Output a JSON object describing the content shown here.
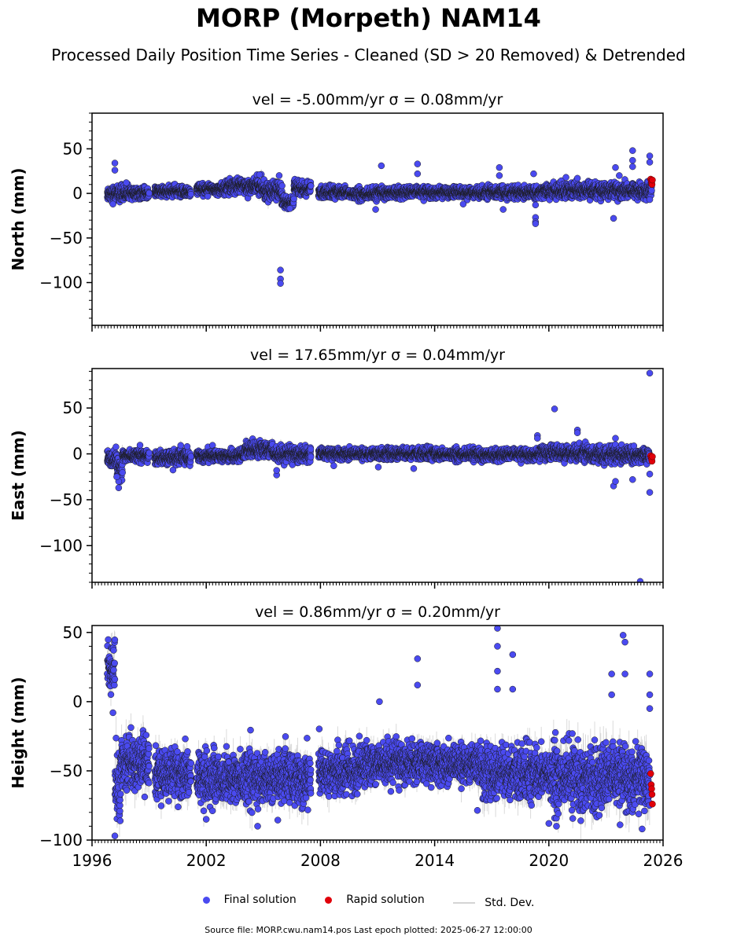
{
  "title": "MORP (Morpeth) NAM14",
  "subtitle": "Processed Daily Position Time Series - Cleaned (SD > 20 Removed) & Detrended",
  "legend": {
    "final_label": "Final solution",
    "rapid_label": "Rapid solution",
    "sd_label": "Std. Dev."
  },
  "footer": "Source file: MORP.cwu.nam14.pos  Last epoch plotted: 2025-06-27 12:00:00",
  "colors": {
    "final": "#4a4af0",
    "rapid": "#e0000a",
    "sd": "#bbbbbb",
    "edge": "#1a1a1a"
  },
  "chart_data": [
    {
      "type": "scatter",
      "panel": "north",
      "title": "vel = -5.00mm/yr   σ = 0.08mm/yr",
      "ylabel": "North (mm)",
      "xlim": [
        1996,
        2026
      ],
      "ylim": [
        -148,
        90
      ],
      "yticks": [
        50,
        0,
        -50,
        -100
      ],
      "xticks": [
        1996,
        2002,
        2008,
        2014,
        2020,
        2026
      ],
      "show_xticklabels": false,
      "segments": [
        {
          "start": 1996.8,
          "end": 1997.9,
          "mean": 0,
          "spread": 4
        },
        {
          "start": 1997.9,
          "end": 1999.0,
          "mean": 0,
          "spread": 3
        },
        {
          "start": 1999.3,
          "end": 2001.2,
          "mean": 2,
          "spread": 3
        },
        {
          "start": 2001.5,
          "end": 2003.0,
          "mean": 5,
          "spread": 3
        },
        {
          "start": 2003.0,
          "end": 2005.0,
          "mean": 8,
          "spread": 4
        },
        {
          "start": 2005.0,
          "end": 2006.0,
          "mean": 3,
          "spread": 5
        },
        {
          "start": 2006.0,
          "end": 2006.6,
          "mean": -10,
          "spread": 4
        },
        {
          "start": 2006.6,
          "end": 2007.5,
          "mean": 5,
          "spread": 4
        },
        {
          "start": 2007.9,
          "end": 2009.5,
          "mean": 1,
          "spread": 3
        },
        {
          "start": 2009.5,
          "end": 2011.0,
          "mean": -1,
          "spread": 3
        },
        {
          "start": 2011.0,
          "end": 2013.0,
          "mean": 1,
          "spread": 3
        },
        {
          "start": 2013.0,
          "end": 2016.5,
          "mean": 1,
          "spread": 3
        },
        {
          "start": 2016.5,
          "end": 2019.5,
          "mean": 1,
          "spread": 3
        },
        {
          "start": 2019.5,
          "end": 2022.0,
          "mean": 3,
          "spread": 4
        },
        {
          "start": 2022.0,
          "end": 2025.4,
          "mean": 3,
          "spread": 4
        }
      ],
      "outliers": [
        {
          "x": 1997.2,
          "y": 34
        },
        {
          "x": 1997.2,
          "y": 26
        },
        {
          "x": 1997.1,
          "y": -12
        },
        {
          "x": 1997.8,
          "y": 12
        },
        {
          "x": 2004.8,
          "y": 21
        },
        {
          "x": 2005.9,
          "y": -86
        },
        {
          "x": 2005.9,
          "y": -96
        },
        {
          "x": 2005.9,
          "y": -101
        },
        {
          "x": 2006.4,
          "y": -17
        },
        {
          "x": 2010.9,
          "y": -18
        },
        {
          "x": 2011.2,
          "y": 31
        },
        {
          "x": 2013.1,
          "y": 33
        },
        {
          "x": 2013.1,
          "y": 22
        },
        {
          "x": 2015.5,
          "y": -12
        },
        {
          "x": 2017.4,
          "y": 29
        },
        {
          "x": 2017.4,
          "y": 20
        },
        {
          "x": 2017.6,
          "y": -18
        },
        {
          "x": 2019.2,
          "y": 22
        },
        {
          "x": 2019.3,
          "y": -13
        },
        {
          "x": 2019.3,
          "y": -27
        },
        {
          "x": 2019.3,
          "y": -32
        },
        {
          "x": 2019.3,
          "y": -34
        },
        {
          "x": 2020.9,
          "y": 18
        },
        {
          "x": 2021.5,
          "y": 17
        },
        {
          "x": 2023.4,
          "y": -28
        },
        {
          "x": 2023.5,
          "y": 29
        },
        {
          "x": 2023.7,
          "y": 20
        },
        {
          "x": 2024.4,
          "y": 48
        },
        {
          "x": 2024.4,
          "y": 37
        },
        {
          "x": 2024.4,
          "y": 30
        },
        {
          "x": 2025.3,
          "y": 42
        },
        {
          "x": 2025.3,
          "y": 35
        },
        {
          "x": 2025.3,
          "y": -7
        }
      ],
      "rapid": [
        {
          "x": 2025.35,
          "y": 16
        },
        {
          "x": 2025.38,
          "y": 14
        },
        {
          "x": 2025.4,
          "y": 12
        },
        {
          "x": 2025.42,
          "y": 10
        },
        {
          "x": 2025.44,
          "y": 15
        }
      ]
    },
    {
      "type": "scatter",
      "panel": "east",
      "title": "vel = 17.65mm/yr   σ = 0.04mm/yr",
      "ylabel": "East (mm)",
      "xlim": [
        1996,
        2026
      ],
      "ylim": [
        -140,
        93
      ],
      "yticks": [
        50,
        0,
        -50,
        -100
      ],
      "xticks": [
        1996,
        2002,
        2008,
        2014,
        2020,
        2026
      ],
      "show_xticklabels": false,
      "segments": [
        {
          "start": 1996.8,
          "end": 1997.3,
          "mean": -5,
          "spread": 5
        },
        {
          "start": 1997.3,
          "end": 1997.6,
          "mean": -15,
          "spread": 8
        },
        {
          "start": 1997.6,
          "end": 1999.0,
          "mean": -2,
          "spread": 3
        },
        {
          "start": 1999.3,
          "end": 2001.2,
          "mean": -4,
          "spread": 4
        },
        {
          "start": 2001.5,
          "end": 2004.0,
          "mean": -2,
          "spread": 3
        },
        {
          "start": 2004.0,
          "end": 2005.5,
          "mean": 5,
          "spread": 4
        },
        {
          "start": 2005.5,
          "end": 2007.5,
          "mean": -1,
          "spread": 4
        },
        {
          "start": 2007.9,
          "end": 2014.0,
          "mean": 0,
          "spread": 3
        },
        {
          "start": 2014.0,
          "end": 2019.5,
          "mean": -1,
          "spread": 3
        },
        {
          "start": 2019.5,
          "end": 2022.0,
          "mean": 1,
          "spread": 4
        },
        {
          "start": 2022.0,
          "end": 2025.3,
          "mean": -1,
          "spread": 4
        }
      ],
      "outliers": [
        {
          "x": 1997.4,
          "y": -37
        },
        {
          "x": 1997.4,
          "y": -30
        },
        {
          "x": 1997.3,
          "y": -25
        },
        {
          "x": 2001.0,
          "y": 8
        },
        {
          "x": 2005.7,
          "y": -23
        },
        {
          "x": 2005.7,
          "y": -18
        },
        {
          "x": 2008.7,
          "y": -13
        },
        {
          "x": 2012.9,
          "y": -16
        },
        {
          "x": 2019.4,
          "y": 20
        },
        {
          "x": 2019.4,
          "y": 17
        },
        {
          "x": 2020.3,
          "y": 49
        },
        {
          "x": 2021.5,
          "y": 26
        },
        {
          "x": 2021.5,
          "y": 23
        },
        {
          "x": 2023.4,
          "y": -35
        },
        {
          "x": 2023.5,
          "y": -30
        },
        {
          "x": 2023.5,
          "y": 17
        },
        {
          "x": 2024.4,
          "y": -28
        },
        {
          "x": 2024.8,
          "y": -139
        },
        {
          "x": 2025.3,
          "y": 88
        },
        {
          "x": 2025.3,
          "y": -42
        },
        {
          "x": 2025.3,
          "y": -22
        }
      ],
      "rapid": [
        {
          "x": 2025.35,
          "y": -2
        },
        {
          "x": 2025.38,
          "y": -4
        },
        {
          "x": 2025.4,
          "y": -6
        },
        {
          "x": 2025.42,
          "y": -8
        },
        {
          "x": 2025.44,
          "y": -3
        }
      ]
    },
    {
      "type": "scatter",
      "panel": "height",
      "title": "vel = 0.86mm/yr   σ = 0.20mm/yr",
      "ylabel": "Height (mm)",
      "xlim": [
        1996,
        2026
      ],
      "ylim": [
        -100,
        55
      ],
      "yticks": [
        50,
        0,
        -50,
        -100
      ],
      "xticks": [
        1996,
        2002,
        2008,
        2014,
        2020,
        2026
      ],
      "show_xticklabels": true,
      "segments": [
        {
          "start": 1996.8,
          "end": 1997.2,
          "mean": 25,
          "spread": 8
        },
        {
          "start": 1997.2,
          "end": 1997.5,
          "mean": -60,
          "spread": 12
        },
        {
          "start": 1997.5,
          "end": 1999.0,
          "mean": -45,
          "spread": 9
        },
        {
          "start": 1999.3,
          "end": 2001.2,
          "mean": -52,
          "spread": 8
        },
        {
          "start": 2001.5,
          "end": 2007.5,
          "mean": -55,
          "spread": 9
        },
        {
          "start": 2007.9,
          "end": 2010.0,
          "mean": -50,
          "spread": 8
        },
        {
          "start": 2010.0,
          "end": 2016.5,
          "mean": -45,
          "spread": 7
        },
        {
          "start": 2016.5,
          "end": 2020.0,
          "mean": -52,
          "spread": 9
        },
        {
          "start": 2020.0,
          "end": 2025.3,
          "mean": -55,
          "spread": 11
        }
      ],
      "outliers": [
        {
          "x": 1997.2,
          "y": -97
        },
        {
          "x": 1997.1,
          "y": -8
        },
        {
          "x": 2002.0,
          "y": -85
        },
        {
          "x": 2004.7,
          "y": -90
        },
        {
          "x": 2011.1,
          "y": 0
        },
        {
          "x": 2013.1,
          "y": 31
        },
        {
          "x": 2013.1,
          "y": 12
        },
        {
          "x": 2017.3,
          "y": 53
        },
        {
          "x": 2017.3,
          "y": 40
        },
        {
          "x": 2017.3,
          "y": 22
        },
        {
          "x": 2017.3,
          "y": 9
        },
        {
          "x": 2018.1,
          "y": 34
        },
        {
          "x": 2018.1,
          "y": 9
        },
        {
          "x": 2020.0,
          "y": -88
        },
        {
          "x": 2020.4,
          "y": -90
        },
        {
          "x": 2023.3,
          "y": 20
        },
        {
          "x": 2023.3,
          "y": 5
        },
        {
          "x": 2023.9,
          "y": 48
        },
        {
          "x": 2024.0,
          "y": 43
        },
        {
          "x": 2024.0,
          "y": 20
        },
        {
          "x": 2024.9,
          "y": -92
        },
        {
          "x": 2025.3,
          "y": 20
        },
        {
          "x": 2025.3,
          "y": 5
        },
        {
          "x": 2025.3,
          "y": -5
        }
      ],
      "rapid": [
        {
          "x": 2025.35,
          "y": -52
        },
        {
          "x": 2025.38,
          "y": -60
        },
        {
          "x": 2025.4,
          "y": -63
        },
        {
          "x": 2025.42,
          "y": -67
        },
        {
          "x": 2025.44,
          "y": -74
        }
      ]
    }
  ]
}
